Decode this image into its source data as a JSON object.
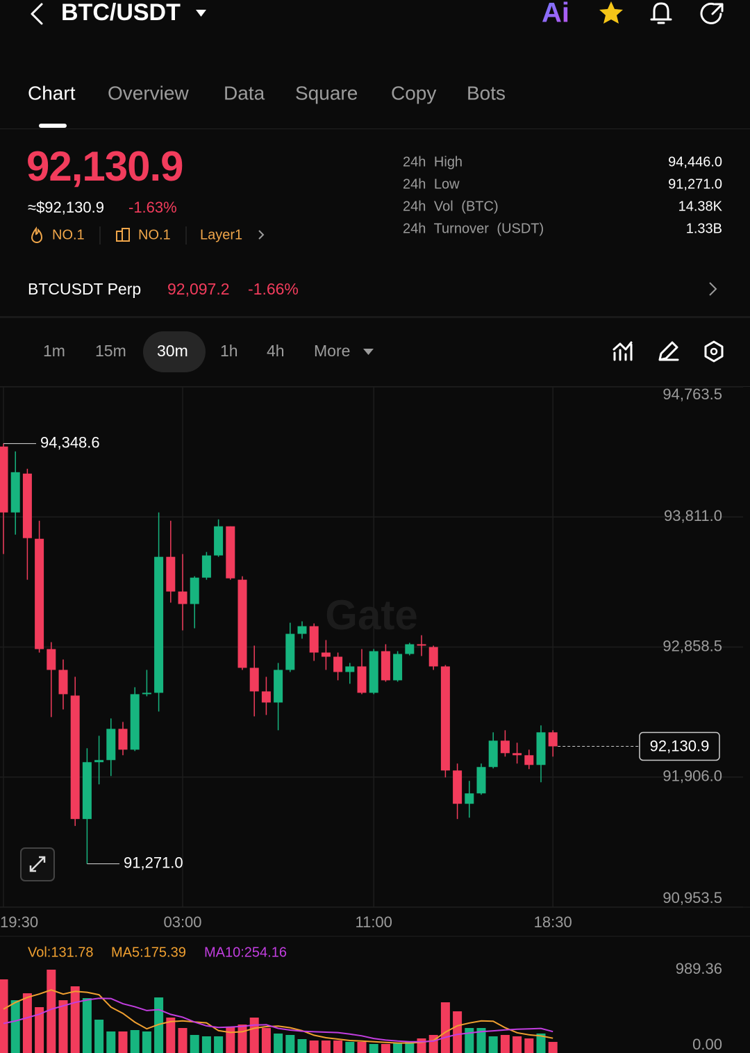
{
  "header": {
    "title": "BTC/USDT",
    "ai_label": "Ai"
  },
  "tabs": [
    "Chart",
    "Overview",
    "Data",
    "Square",
    "Copy",
    "Bots"
  ],
  "ticker": {
    "price": "92,130.9",
    "usd": "≈$92,130.9",
    "change": "-1.63%",
    "rank_hot": "NO.1",
    "rank_sector": "NO.1",
    "tag": "Layer1"
  },
  "stats": [
    {
      "label": "24h High",
      "value": "94,446.0"
    },
    {
      "label": "24h Low",
      "value": "91,271.0"
    },
    {
      "label": "24h Vol (BTC)",
      "value": "14.38K"
    },
    {
      "label": "24h Turnover (USDT)",
      "value": "1.33B"
    }
  ],
  "perp": {
    "name": "BTCUSDT Perp",
    "price": "92,097.2",
    "change": "-1.66%"
  },
  "intervals": [
    "1m",
    "15m",
    "30m",
    "1h",
    "4h",
    "More"
  ],
  "active_interval": 2,
  "chart_data": [
    {
      "type": "candlestick",
      "watermark": "Gate",
      "up_color": "#17b57f",
      "down_color": "#f23c5c",
      "categories": [
        "19:30",
        null,
        null,
        null,
        null,
        null,
        null,
        null,
        null,
        null,
        null,
        null,
        null,
        null,
        null,
        "03:00",
        null,
        null,
        null,
        null,
        null,
        null,
        null,
        null,
        null,
        null,
        null,
        null,
        null,
        null,
        null,
        "11:00",
        null,
        null,
        null,
        null,
        null,
        null,
        null,
        null,
        null,
        null,
        null,
        null,
        null,
        null,
        "18:30"
      ],
      "open": [
        94326.6,
        93844.0,
        94128.5,
        93651.0,
        92843.3,
        92690.9,
        92502.9,
        91598.7,
        92015.2,
        92030.5,
        92259.1,
        92106.7,
        92513.1,
        92523.2,
        93518.9,
        93264.9,
        93173.5,
        93366.5,
        93529.1,
        93742.4,
        93351.3,
        92706.1,
        92533.4,
        92452.1,
        92690.9,
        92955.0,
        93010.9,
        92817.9,
        92787.4,
        92675.6,
        92716.3,
        92523.2,
        92828.0,
        92614.7,
        92807.7,
        92878.8,
        92858.5,
        92716.3,
        91954.3,
        91710.4,
        91786.6,
        91979.7,
        92172.7,
        92081.3,
        92066.0,
        91994.9,
        92233.7
      ],
      "high": [
        94348.6,
        94291.1,
        94164.1,
        93783.1,
        92894.1,
        92767.1,
        92640.1,
        92116.8,
        92208.3,
        92335.3,
        92309.9,
        92563.9,
        92690.9,
        93844.0,
        93783.1,
        93539.2,
        93376.7,
        93554.5,
        93793.2,
        93742.4,
        93376.7,
        92868.7,
        92640.1,
        92741.7,
        93036.3,
        93046.5,
        93031.2,
        92909.3,
        92817.9,
        92741.7,
        92843.3,
        92843.3,
        92878.8,
        92828.0,
        92889.0,
        92944.9,
        92868.7,
        92726.5,
        92005.1,
        91878.1,
        92005.1,
        92233.7,
        92248.9,
        92157.5,
        92106.7,
        92284.5,
        92248.9
      ],
      "low": [
        93539.2,
        93681.5,
        93351.3,
        92817.9,
        92345.4,
        92401.3,
        91547.9,
        91271.0,
        91852.7,
        91913.6,
        92066.0,
        92096.5,
        92497.8,
        92386.1,
        93183.6,
        92980.4,
        92995.7,
        93351.3,
        93518.9,
        93351.3,
        92690.9,
        92350.5,
        92360.7,
        92248.9,
        92675.6,
        92919.5,
        92756.9,
        92690.9,
        92614.7,
        92589.3,
        92513.1,
        92513.1,
        92604.5,
        92604.5,
        92797.5,
        92792.5,
        92690.9,
        91903.5,
        91598.7,
        91608.8,
        91776.5,
        91969.5,
        92055.9,
        92005.1,
        91964.4,
        91867.9,
        92055.9
      ],
      "close": [
        93844.0,
        94138.7,
        93656.1,
        92843.3,
        92690.9,
        92513.1,
        91598.7,
        92015.2,
        92030.5,
        92259.1,
        92106.7,
        92513.1,
        92523.2,
        93518.9,
        93264.9,
        93173.5,
        93366.5,
        93529.1,
        93742.4,
        93361.4,
        92706.1,
        92533.4,
        92452.1,
        92690.9,
        92955.0,
        93010.9,
        92817.9,
        92787.4,
        92675.6,
        92716.3,
        92523.2,
        92828.0,
        92614.7,
        92807.7,
        92878.8,
        92868.7,
        92716.3,
        91954.3,
        91710.4,
        91786.6,
        91979.7,
        92172.7,
        92081.3,
        92066.0,
        91994.9,
        92233.7,
        92130.9
      ],
      "max_label": "94,348.6",
      "min_label": "91,271.0",
      "last_price_label": "92,130.9",
      "ylim": [
        90953.5,
        94763.5
      ],
      "yticks": [
        {
          "value": 94763.5,
          "label": "94,763.5"
        },
        {
          "value": 93811.0,
          "label": "93,811.0"
        },
        {
          "value": 92858.5,
          "label": "92,858.5"
        },
        {
          "value": 91906.0,
          "label": "91,906.0"
        },
        {
          "value": 90953.5,
          "label": "90,953.5"
        }
      ],
      "grid": true
    },
    {
      "type": "bar",
      "series": [
        {
          "name": "Vol:131.78",
          "color": "#f0a030",
          "values": [
            874.0,
            626.6,
            709.1,
            544.2,
            989.36,
            626.6,
            791.5,
            651.4,
            395.8,
            255.6,
            255.6,
            272.1,
            255.6,
            659.6,
            420.5,
            296.8,
            214.4,
            197.9,
            197.9,
            313.3,
            338.0,
            420.5,
            296.8,
            230.9,
            214.4,
            164.9,
            148.4,
            148.4,
            148.4,
            131.9,
            131.9,
            107.2,
            107.2,
            115.4,
            131.9,
            173.1,
            214.4,
            601.9,
            494.7,
            296.8,
            296.8,
            197.9,
            214.4,
            197.9,
            173.1,
            230.9,
            131.78
          ]
        },
        {
          "name": "MA5:175.39",
          "color": "#f0a030",
          "values": [
            520,
            600,
            660,
            700,
            748.6,
            699.2,
            732.2,
            720.6,
            691.0,
            544.4,
            470.2,
            366.2,
            287.2,
            340.0,
            372.8,
            381.0,
            369.4,
            357.8,
            265.4,
            244.0,
            252.2,
            293.4,
            313.2,
            319.8,
            300.0,
            265.4,
            211.0,
            181.2,
            164.6,
            148.2,
            141.6,
            133.4,
            125.2,
            118.6,
            118.6,
            126.8,
            148.2,
            247.2,
            323.2,
            356.2,
            381.0,
            377.8,
            300.2,
            240.8,
            216.0,
            202.8,
            175.39
          ]
        },
        {
          "name": "MA10:254.16",
          "color": "#c23ee0",
          "values": [
            350,
            380,
            420,
            460,
            520,
            560,
            600,
            630,
            650,
            646.5,
            584.7,
            549.2,
            503.9,
            515.5,
            458.6,
            425.6,
            367.8,
            322.5,
            302.7,
            308.4,
            316.6,
            331.4,
            335.5,
            292.6,
            272.0,
            258.8,
            252.2,
            247.2,
            242.2,
            224.1,
            203.5,
            172.2,
            153.2,
            141.6,
            133.4,
            134.2,
            140.8,
            186.2,
            220.9,
            237.4,
            253.9,
            263.0,
            273.7,
            282.0,
            286.1,
            291.9,
            254.16
          ]
        }
      ],
      "ylim": [
        0,
        989.36
      ],
      "yticks": [
        989.36,
        {
          "value": 0,
          "label": "0.00"
        }
      ]
    }
  ]
}
